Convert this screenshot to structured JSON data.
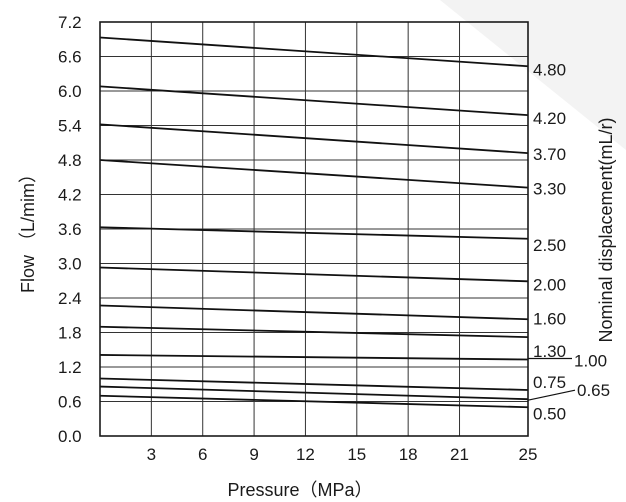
{
  "chart_data": {
    "type": "line",
    "title": "",
    "xlabel": "Pressure（MPa）",
    "ylabel": "Flow （L/mim）",
    "y2label": "Nominal displacement(mL/r)",
    "xlim": [
      0,
      25
    ],
    "ylim": [
      0,
      7.2
    ],
    "x_ticks": [
      "3",
      "6",
      "9",
      "12",
      "15",
      "18",
      "21",
      "25"
    ],
    "y_ticks": [
      "0.0",
      "0.6",
      "1.2",
      "1.8",
      "2.4",
      "3.0",
      "3.6",
      "4.2",
      "4.8",
      "5.4",
      "6.0",
      "6.6",
      "7.2"
    ],
    "grid": true,
    "series": [
      {
        "name": "4.80",
        "x": [
          0,
          25
        ],
        "y": [
          6.93,
          6.43
        ]
      },
      {
        "name": "4.20",
        "x": [
          0,
          25
        ],
        "y": [
          6.08,
          5.58
        ]
      },
      {
        "name": "3.70",
        "x": [
          0,
          25
        ],
        "y": [
          5.42,
          4.92
        ]
      },
      {
        "name": "3.30",
        "x": [
          0,
          25
        ],
        "y": [
          4.8,
          4.32
        ]
      },
      {
        "name": "2.50",
        "x": [
          0,
          25
        ],
        "y": [
          3.63,
          3.43
        ]
      },
      {
        "name": "2.00",
        "x": [
          0,
          25
        ],
        "y": [
          2.93,
          2.69
        ]
      },
      {
        "name": "1.60",
        "x": [
          0,
          25
        ],
        "y": [
          2.27,
          2.03
        ]
      },
      {
        "name": "1.30",
        "x": [
          0,
          25
        ],
        "y": [
          1.9,
          1.72
        ]
      },
      {
        "name": "1.00",
        "x": [
          0,
          25
        ],
        "y": [
          1.41,
          1.33
        ]
      },
      {
        "name": "0.75",
        "x": [
          0,
          25
        ],
        "y": [
          1.0,
          0.8
        ]
      },
      {
        "name": "0.65",
        "x": [
          0,
          25
        ],
        "y": [
          0.86,
          0.64
        ]
      },
      {
        "name": "0.50",
        "x": [
          0,
          25
        ],
        "y": [
          0.7,
          0.5
        ]
      }
    ]
  }
}
